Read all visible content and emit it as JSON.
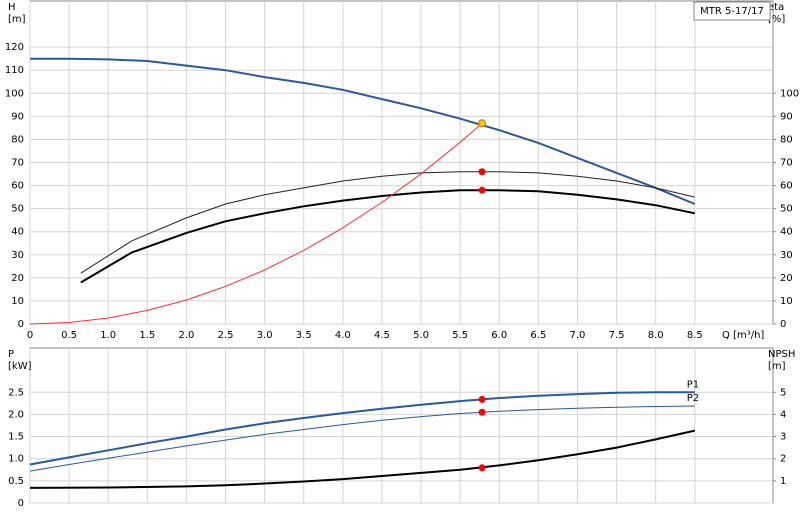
{
  "chart_data": [
    {
      "type": "line",
      "title": "MTR 5-17/17",
      "ylabel": "H",
      "ylabel_unit": "[m]",
      "y2label": "eta",
      "y2label_unit": "[%]",
      "xlabel": "Q [m³/h]",
      "xlim": [
        0,
        9.5
      ],
      "xticks": [
        0,
        0.5,
        {
          "value": 1,
          "label": "1.0"
        },
        1.5,
        {
          "value": 2,
          "label": "2.0"
        },
        2.5,
        {
          "value": 3,
          "label": "3.0"
        },
        3.5,
        {
          "value": 4,
          "label": "4.0"
        },
        4.5,
        {
          "value": 5,
          "label": "5.0"
        },
        5.5,
        {
          "value": 6,
          "label": "6.0"
        },
        6.5,
        {
          "value": 7,
          "label": "7.0"
        },
        7.5,
        {
          "value": 8,
          "label": "8.0"
        },
        8.5
      ],
      "ylim": [
        0,
        140
      ],
      "yticks": [
        0,
        10,
        20,
        30,
        40,
        50,
        60,
        70,
        80,
        90,
        100,
        110,
        120
      ],
      "y2lim": [
        0,
        140
      ],
      "y2ticks": [
        0,
        10,
        20,
        30,
        40,
        50,
        60,
        70,
        80,
        90,
        100
      ],
      "grid": true,
      "series": [
        {
          "color": "#2a5a9a",
          "x": [
            0,
            0.5,
            1,
            1.5,
            2,
            2.5,
            3,
            3.5,
            4,
            4.5,
            5,
            5.5,
            6,
            6.5,
            7,
            7.5,
            8,
            8.5
          ],
          "values": [
            115,
            115,
            114.7,
            114,
            112,
            110,
            107,
            104.5,
            101.5,
            97.5,
            93.5,
            89,
            84,
            78.5,
            72,
            65.5,
            59,
            52
          ]
        },
        {
          "color": "#222222",
          "axis": "y2",
          "x": [
            0.65,
            1.3,
            2,
            2.5,
            3,
            3.5,
            4,
            4.5,
            5,
            5.5,
            6,
            6.5,
            7,
            7.5,
            8,
            8.5
          ],
          "values": [
            22,
            36,
            46,
            52,
            56,
            59,
            62,
            64,
            65.5,
            66,
            66,
            65.5,
            64,
            62,
            59,
            55
          ]
        },
        {
          "color": "#000000",
          "axis": "y2",
          "x": [
            0.65,
            1.3,
            2,
            2.5,
            3,
            3.5,
            4,
            4.5,
            5,
            5.5,
            6,
            6.5,
            7,
            7.5,
            8,
            8.5
          ],
          "values": [
            18,
            31,
            39.5,
            44.5,
            48,
            51,
            53.5,
            55.5,
            57,
            58,
            58,
            57.5,
            56,
            54,
            51.5,
            48
          ]
        },
        {
          "color": "#ff3030",
          "x": [
            0,
            0.5,
            1,
            1.5,
            2,
            2.5,
            3,
            3.5,
            4,
            4.5,
            5,
            5.5,
            5.78
          ],
          "values": [
            0,
            0.65,
            2.6,
            5.9,
            10.4,
            16.3,
            23.4,
            31.9,
            41.7,
            52.7,
            65.1,
            78.8,
            87
          ]
        }
      ],
      "points": [
        {
          "x": 5.78,
          "y": 87,
          "color": "#ffc000"
        },
        {
          "x": 5.78,
          "y": 66,
          "axis": "y2",
          "color": "#ff0000"
        },
        {
          "x": 5.78,
          "y": 58,
          "axis": "y2",
          "color": "#ff0000"
        }
      ]
    },
    {
      "type": "line",
      "ylabel": "P",
      "ylabel_unit": "[kW]",
      "y2label": "NPSH",
      "y2label_unit": "[m]",
      "xlim": [
        0,
        9.5
      ],
      "ylim": [
        0,
        3.5
      ],
      "yticks": [
        0,
        0.5,
        {
          "value": 1,
          "label": "1.0"
        },
        1.5,
        {
          "value": 2,
          "label": "2.0"
        },
        2.5
      ],
      "y2lim": [
        0,
        7
      ],
      "y2ticks": [
        1,
        2,
        3,
        4,
        5
      ],
      "grid": true,
      "series": [
        {
          "name": "P1",
          "color": "#2a5a9a",
          "x": [
            0,
            0.5,
            1,
            1.5,
            2,
            2.5,
            3,
            3.5,
            4,
            4.5,
            5,
            5.5,
            6,
            6.5,
            7,
            7.5,
            8,
            8.5
          ],
          "values": [
            0.87,
            1.03,
            1.19,
            1.35,
            1.5,
            1.66,
            1.8,
            1.92,
            2.03,
            2.13,
            2.22,
            2.3,
            2.37,
            2.42,
            2.46,
            2.49,
            2.5,
            2.5
          ]
        },
        {
          "name": "P2",
          "color": "#2a5a9a",
          "x": [
            0,
            0.5,
            1,
            1.5,
            2,
            2.5,
            3,
            3.5,
            4,
            4.5,
            5,
            5.5,
            6,
            6.5,
            7,
            7.5,
            8,
            8.5
          ],
          "values": [
            0.72,
            0.87,
            1.01,
            1.15,
            1.29,
            1.42,
            1.55,
            1.66,
            1.77,
            1.87,
            1.95,
            2.02,
            2.07,
            2.11,
            2.14,
            2.16,
            2.18,
            2.19
          ]
        },
        {
          "color": "#000000",
          "axis": "y2",
          "x": [
            0,
            1,
            2,
            2.5,
            3,
            3.5,
            4,
            4.5,
            5,
            5.5,
            6,
            6.5,
            7,
            7.5,
            8,
            8.5
          ],
          "values": [
            0.68,
            0.7,
            0.75,
            0.8,
            0.88,
            0.97,
            1.08,
            1.22,
            1.36,
            1.5,
            1.7,
            1.93,
            2.2,
            2.5,
            2.87,
            3.27
          ]
        }
      ],
      "points": [
        {
          "x": 5.78,
          "y": 2.34,
          "color": "#ff0000"
        },
        {
          "x": 5.78,
          "y": 2.05,
          "color": "#ff0000"
        },
        {
          "x": 5.78,
          "y": 1.59,
          "axis": "y2",
          "color": "#ff0000"
        }
      ]
    }
  ]
}
